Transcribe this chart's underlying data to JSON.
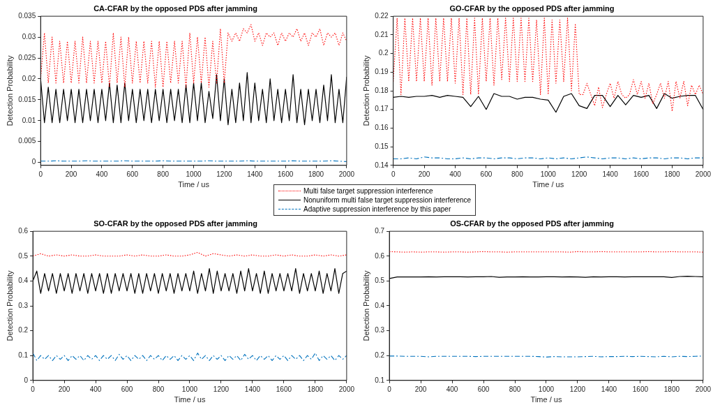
{
  "chart_data": [
    {
      "type": "line",
      "title": "CA-CFAR by the opposed PDS after jamming",
      "xlabel": "Time / us",
      "ylabel": "Detection Probability",
      "legend": "bottom right",
      "x": [
        0,
        25,
        50,
        75,
        100,
        125,
        150,
        175,
        200,
        225,
        250,
        275,
        300,
        325,
        350,
        375,
        400,
        425,
        450,
        475,
        500,
        525,
        550,
        575,
        600,
        625,
        650,
        675,
        700,
        725,
        750,
        775,
        800,
        825,
        850,
        875,
        900,
        925,
        950,
        975,
        1000,
        1025,
        1050,
        1075,
        1100,
        1125,
        1150,
        1175,
        1200,
        1225,
        1250,
        1275,
        1300,
        1325,
        1350,
        1375,
        1400,
        1425,
        1450,
        1475,
        1500,
        1525,
        1550,
        1575,
        1600,
        1625,
        1650,
        1675,
        1700,
        1725,
        1750,
        1775,
        1800,
        1825,
        1850,
        1875,
        1900,
        1925,
        1950,
        1975,
        2000
      ],
      "xlim": [
        0,
        2000
      ],
      "xticks": [
        0,
        200,
        400,
        600,
        800,
        1000,
        1200,
        1400,
        1600,
        1800,
        2000
      ],
      "ylim": [
        -0.0007,
        0.035
      ],
      "yticks": [
        0,
        0.005,
        0.01,
        0.015,
        0.02,
        0.025,
        0.03,
        0.035
      ],
      "series": [
        {
          "name": "Multi false target suppression interference",
          "color": "#ff0000",
          "line_style": "dotted",
          "values": [
            0.02,
            0.031,
            0.019,
            0.03,
            0.019,
            0.029,
            0.019,
            0.029,
            0.019,
            0.029,
            0.019,
            0.03,
            0.019,
            0.029,
            0.019,
            0.029,
            0.019,
            0.029,
            0.018,
            0.031,
            0.019,
            0.03,
            0.018,
            0.03,
            0.019,
            0.029,
            0.019,
            0.029,
            0.019,
            0.029,
            0.018,
            0.029,
            0.018,
            0.029,
            0.019,
            0.029,
            0.019,
            0.029,
            0.018,
            0.031,
            0.019,
            0.03,
            0.019,
            0.03,
            0.018,
            0.029,
            0.019,
            0.032,
            0.019,
            0.031,
            0.029,
            0.031,
            0.029,
            0.032,
            0.031,
            0.033,
            0.029,
            0.031,
            0.028,
            0.031,
            0.03,
            0.031,
            0.028,
            0.031,
            0.029,
            0.031,
            0.03,
            0.032,
            0.029,
            0.031,
            0.028,
            0.031,
            0.03,
            0.032,
            0.028,
            0.031,
            0.03,
            0.031,
            0.028,
            0.031,
            0.029
          ]
        },
        {
          "name": "Nonuniform multi false target suppression interference",
          "color": "#000000",
          "line_style": "solid",
          "values": [
            0.02,
            0.0095,
            0.018,
            0.0095,
            0.0175,
            0.0095,
            0.0175,
            0.01,
            0.0175,
            0.0095,
            0.0175,
            0.0095,
            0.0175,
            0.01,
            0.0175,
            0.0095,
            0.0175,
            0.01,
            0.019,
            0.0095,
            0.0185,
            0.0095,
            0.019,
            0.01,
            0.0175,
            0.0095,
            0.0175,
            0.01,
            0.0175,
            0.0095,
            0.0175,
            0.01,
            0.0175,
            0.0095,
            0.0175,
            0.01,
            0.0175,
            0.0095,
            0.0185,
            0.0095,
            0.019,
            0.01,
            0.019,
            0.0095,
            0.017,
            0.0105,
            0.021,
            0.01,
            0.02,
            0.009,
            0.0175,
            0.0095,
            0.019,
            0.01,
            0.0215,
            0.0095,
            0.019,
            0.01,
            0.0175,
            0.0095,
            0.02,
            0.01,
            0.0175,
            0.0095,
            0.0175,
            0.01,
            0.021,
            0.0095,
            0.0175,
            0.009,
            0.0175,
            0.01,
            0.0175,
            0.0095,
            0.0185,
            0.01,
            0.021,
            0.0095,
            0.0175,
            0.0095,
            0.0205
          ]
        },
        {
          "name": "Adaptive suppression interference by this paper",
          "color": "#0072bd",
          "line_style": "dashed",
          "x": [
            0,
            50,
            100,
            150,
            200,
            250,
            300,
            350,
            400,
            450,
            500,
            550,
            600,
            650,
            700,
            750,
            800,
            850,
            900,
            950,
            1000,
            1050,
            1100,
            1150,
            1200,
            1250,
            1300,
            1350,
            1400,
            1450,
            1500,
            1550,
            1600,
            1650,
            1700,
            1750,
            1800,
            1850,
            1900,
            1950,
            2000
          ],
          "values": [
            0.0003,
            0.0003,
            0.0004,
            0.0003,
            0.0003,
            0.0003,
            0.0004,
            0.0003,
            0.0003,
            0.0003,
            0.0003,
            0.0004,
            0.0003,
            0.0003,
            0.0003,
            0.0003,
            0.0004,
            0.0003,
            0.0003,
            0.0003,
            0.0003,
            0.0003,
            0.0004,
            0.0003,
            0.0003,
            0.0003,
            0.0003,
            0.0004,
            0.0003,
            0.0003,
            0.0003,
            0.0003,
            0.0003,
            0.0004,
            0.0003,
            0.0003,
            0.0003,
            0.0003,
            0.0004,
            0.0003,
            0.0002
          ]
        }
      ]
    },
    {
      "type": "line",
      "title": "GO-CFAR by the opposed PDS after jamming",
      "xlabel": "Time / us",
      "ylabel": "Detection Probability",
      "x": [
        0,
        25,
        50,
        75,
        100,
        125,
        150,
        175,
        200,
        225,
        250,
        275,
        300,
        325,
        350,
        375,
        400,
        425,
        450,
        475,
        500,
        525,
        550,
        575,
        600,
        625,
        650,
        675,
        700,
        725,
        750,
        775,
        800,
        825,
        850,
        875,
        900,
        925,
        950,
        975,
        1000,
        1025,
        1050,
        1075,
        1100,
        1125,
        1150,
        1175,
        1200,
        1225,
        1250,
        1275,
        1300,
        1325,
        1350,
        1375,
        1400,
        1425,
        1450,
        1475,
        1500,
        1525,
        1550,
        1575,
        1600,
        1625,
        1650,
        1675,
        1700,
        1725,
        1750,
        1775,
        1800,
        1825,
        1850,
        1875,
        1900,
        1925,
        1950,
        1975,
        2000
      ],
      "xlim": [
        0,
        2000
      ],
      "xticks": [
        0,
        200,
        400,
        600,
        800,
        1000,
        1200,
        1400,
        1600,
        1800,
        2000
      ],
      "ylim": [
        0.14,
        0.22
      ],
      "yticks": [
        0.14,
        0.15,
        0.16,
        0.17,
        0.18,
        0.19,
        0.2,
        0.21,
        0.22
      ],
      "series": [
        {
          "color": "#ff0000",
          "line_style": "dotted",
          "values": [
            0.185,
            0.219,
            0.178,
            0.219,
            0.185,
            0.219,
            0.185,
            0.219,
            0.185,
            0.219,
            0.183,
            0.219,
            0.185,
            0.219,
            0.185,
            0.219,
            0.184,
            0.219,
            0.178,
            0.219,
            0.178,
            0.219,
            0.178,
            0.219,
            0.185,
            0.219,
            0.183,
            0.219,
            0.186,
            0.219,
            0.185,
            0.219,
            0.185,
            0.219,
            0.185,
            0.219,
            0.185,
            0.218,
            0.178,
            0.219,
            0.178,
            0.218,
            0.184,
            0.218,
            0.185,
            0.219,
            0.18,
            0.216,
            0.178,
            0.178,
            0.184,
            0.178,
            0.172,
            0.182,
            0.171,
            0.178,
            0.184,
            0.176,
            0.185,
            0.178,
            0.176,
            0.178,
            0.186,
            0.178,
            0.185,
            0.176,
            0.184,
            0.173,
            0.178,
            0.184,
            0.176,
            0.185,
            0.169,
            0.185,
            0.176,
            0.185,
            0.172,
            0.183,
            0.178,
            0.183,
            0.178
          ]
        },
        {
          "color": "#000000",
          "line_style": "solid",
          "x": [
            0,
            50,
            100,
            150,
            200,
            250,
            300,
            350,
            400,
            450,
            500,
            550,
            600,
            650,
            700,
            750,
            800,
            850,
            900,
            950,
            1000,
            1050,
            1100,
            1150,
            1200,
            1250,
            1300,
            1350,
            1400,
            1450,
            1500,
            1550,
            1600,
            1650,
            1700,
            1750,
            1800,
            1850,
            1900,
            1950,
            2000
          ],
          "values": [
            0.1765,
            0.177,
            0.1765,
            0.177,
            0.177,
            0.1775,
            0.1765,
            0.1775,
            0.177,
            0.1765,
            0.1715,
            0.177,
            0.17,
            0.1785,
            0.177,
            0.177,
            0.1755,
            0.1765,
            0.1765,
            0.1755,
            0.175,
            0.1685,
            0.177,
            0.1785,
            0.172,
            0.1705,
            0.1775,
            0.1775,
            0.1715,
            0.1775,
            0.1725,
            0.1775,
            0.1765,
            0.1775,
            0.1705,
            0.1785,
            0.176,
            0.177,
            0.1775,
            0.1775,
            0.17
          ]
        },
        {
          "color": "#0072bd",
          "line_style": "dashed",
          "x": [
            0,
            50,
            100,
            150,
            200,
            250,
            300,
            350,
            400,
            450,
            500,
            550,
            600,
            650,
            700,
            750,
            800,
            850,
            900,
            950,
            1000,
            1050,
            1100,
            1150,
            1200,
            1250,
            1300,
            1350,
            1400,
            1450,
            1500,
            1550,
            1600,
            1650,
            1700,
            1750,
            1800,
            1850,
            1900,
            1950,
            2000
          ],
          "values": [
            0.1435,
            0.1435,
            0.144,
            0.1435,
            0.1445,
            0.144,
            0.144,
            0.1435,
            0.1435,
            0.144,
            0.1435,
            0.144,
            0.144,
            0.1435,
            0.144,
            0.144,
            0.1435,
            0.144,
            0.144,
            0.1435,
            0.144,
            0.1435,
            0.144,
            0.1435,
            0.144,
            0.1445,
            0.144,
            0.1435,
            0.144,
            0.144,
            0.1435,
            0.144,
            0.1435,
            0.144,
            0.144,
            0.1435,
            0.144,
            0.144,
            0.1435,
            0.144,
            0.144
          ]
        }
      ]
    },
    {
      "type": "line",
      "title": "SO-CFAR by the opposed PDS after jamming",
      "xlabel": "Time / us",
      "ylabel": "Detection Probability",
      "x": [
        0,
        25,
        50,
        75,
        100,
        125,
        150,
        175,
        200,
        225,
        250,
        275,
        300,
        325,
        350,
        375,
        400,
        425,
        450,
        475,
        500,
        525,
        550,
        575,
        600,
        625,
        650,
        675,
        700,
        725,
        750,
        775,
        800,
        825,
        850,
        875,
        900,
        925,
        950,
        975,
        1000,
        1025,
        1050,
        1075,
        1100,
        1125,
        1150,
        1175,
        1200,
        1225,
        1250,
        1275,
        1300,
        1325,
        1350,
        1375,
        1400,
        1425,
        1450,
        1475,
        1500,
        1525,
        1550,
        1575,
        1600,
        1625,
        1650,
        1675,
        1700,
        1725,
        1750,
        1775,
        1800,
        1825,
        1850,
        1875,
        1900,
        1925,
        1950,
        1975,
        2000
      ],
      "xlim": [
        0,
        2000
      ],
      "xticks": [
        0,
        200,
        400,
        600,
        800,
        1000,
        1200,
        1400,
        1600,
        1800,
        2000
      ],
      "ylim": [
        0,
        0.6
      ],
      "yticks": [
        0,
        0.1,
        0.2,
        0.3,
        0.4,
        0.5,
        0.6
      ],
      "series": [
        {
          "color": "#ff0000",
          "line_style": "dotted",
          "x": [
            0,
            50,
            100,
            150,
            200,
            250,
            300,
            350,
            400,
            450,
            500,
            550,
            600,
            650,
            700,
            750,
            800,
            850,
            900,
            950,
            1000,
            1050,
            1100,
            1150,
            1200,
            1250,
            1300,
            1350,
            1400,
            1450,
            1500,
            1550,
            1600,
            1650,
            1700,
            1750,
            1800,
            1850,
            1900,
            1950,
            2000
          ],
          "values": [
            0.5,
            0.51,
            0.5,
            0.505,
            0.5,
            0.505,
            0.5,
            0.5,
            0.505,
            0.5,
            0.5,
            0.5,
            0.505,
            0.5,
            0.505,
            0.5,
            0.5,
            0.505,
            0.5,
            0.5,
            0.505,
            0.515,
            0.5,
            0.51,
            0.505,
            0.5,
            0.505,
            0.5,
            0.505,
            0.5,
            0.5,
            0.505,
            0.5,
            0.505,
            0.5,
            0.5,
            0.505,
            0.5,
            0.505,
            0.5,
            0.505
          ]
        },
        {
          "color": "#000000",
          "line_style": "solid",
          "values": [
            0.4,
            0.44,
            0.35,
            0.43,
            0.36,
            0.43,
            0.35,
            0.43,
            0.36,
            0.43,
            0.35,
            0.43,
            0.36,
            0.43,
            0.35,
            0.43,
            0.36,
            0.43,
            0.35,
            0.43,
            0.35,
            0.43,
            0.36,
            0.43,
            0.36,
            0.43,
            0.35,
            0.43,
            0.35,
            0.43,
            0.36,
            0.43,
            0.35,
            0.43,
            0.36,
            0.43,
            0.35,
            0.43,
            0.36,
            0.43,
            0.36,
            0.44,
            0.35,
            0.43,
            0.36,
            0.45,
            0.35,
            0.44,
            0.36,
            0.43,
            0.36,
            0.43,
            0.35,
            0.44,
            0.36,
            0.45,
            0.36,
            0.43,
            0.35,
            0.44,
            0.35,
            0.43,
            0.36,
            0.43,
            0.36,
            0.43,
            0.36,
            0.45,
            0.35,
            0.43,
            0.36,
            0.43,
            0.36,
            0.44,
            0.35,
            0.43,
            0.36,
            0.45,
            0.35,
            0.43,
            0.44
          ]
        },
        {
          "color": "#0072bd",
          "line_style": "dashed",
          "values": [
            0.11,
            0.08,
            0.1,
            0.085,
            0.1,
            0.08,
            0.1,
            0.085,
            0.1,
            0.08,
            0.1,
            0.085,
            0.1,
            0.08,
            0.1,
            0.085,
            0.1,
            0.08,
            0.1,
            0.085,
            0.1,
            0.08,
            0.105,
            0.085,
            0.1,
            0.08,
            0.1,
            0.085,
            0.1,
            0.08,
            0.1,
            0.085,
            0.1,
            0.08,
            0.1,
            0.085,
            0.1,
            0.08,
            0.1,
            0.085,
            0.1,
            0.08,
            0.11,
            0.085,
            0.1,
            0.08,
            0.1,
            0.085,
            0.1,
            0.08,
            0.1,
            0.085,
            0.1,
            0.08,
            0.105,
            0.085,
            0.1,
            0.08,
            0.1,
            0.085,
            0.1,
            0.08,
            0.1,
            0.085,
            0.1,
            0.08,
            0.1,
            0.085,
            0.1,
            0.08,
            0.1,
            0.085,
            0.11,
            0.08,
            0.1,
            0.085,
            0.1,
            0.08,
            0.1,
            0.085,
            0.1
          ]
        }
      ]
    },
    {
      "type": "line",
      "title": "OS-CFAR by the opposed PDS after jamming",
      "xlabel": "Time / us",
      "ylabel": "Detection Probability",
      "x": [
        0,
        50,
        100,
        150,
        200,
        250,
        300,
        350,
        400,
        450,
        500,
        550,
        600,
        650,
        700,
        750,
        800,
        850,
        900,
        950,
        1000,
        1050,
        1100,
        1150,
        1200,
        1250,
        1300,
        1350,
        1400,
        1450,
        1500,
        1550,
        1600,
        1650,
        1700,
        1750,
        1800,
        1850,
        1900,
        1950,
        2000
      ],
      "xlim": [
        0,
        2000
      ],
      "xticks": [
        0,
        200,
        400,
        600,
        800,
        1000,
        1200,
        1400,
        1600,
        1800,
        2000
      ],
      "ylim": [
        0.1,
        0.7
      ],
      "yticks": [
        0.1,
        0.2,
        0.3,
        0.4,
        0.5,
        0.6,
        0.7
      ],
      "series": [
        {
          "color": "#ff0000",
          "line_style": "dotted",
          "values": [
            0.618,
            0.617,
            0.616,
            0.617,
            0.616,
            0.617,
            0.617,
            0.616,
            0.617,
            0.617,
            0.616,
            0.617,
            0.618,
            0.617,
            0.617,
            0.616,
            0.617,
            0.617,
            0.617,
            0.617,
            0.617,
            0.617,
            0.617,
            0.616,
            0.618,
            0.617,
            0.617,
            0.618,
            0.617,
            0.617,
            0.617,
            0.617,
            0.617,
            0.618,
            0.617,
            0.617,
            0.618,
            0.617,
            0.617,
            0.617,
            0.616
          ]
        },
        {
          "color": "#000000",
          "line_style": "solid",
          "values": [
            0.51,
            0.516,
            0.516,
            0.516,
            0.516,
            0.517,
            0.516,
            0.517,
            0.517,
            0.517,
            0.516,
            0.517,
            0.517,
            0.518,
            0.515,
            0.516,
            0.516,
            0.517,
            0.516,
            0.516,
            0.517,
            0.517,
            0.516,
            0.517,
            0.516,
            0.515,
            0.517,
            0.516,
            0.517,
            0.517,
            0.516,
            0.517,
            0.517,
            0.517,
            0.517,
            0.517,
            0.514,
            0.518,
            0.519,
            0.518,
            0.517
          ]
        },
        {
          "color": "#0072bd",
          "line_style": "dashed",
          "values": [
            0.198,
            0.198,
            0.197,
            0.197,
            0.197,
            0.195,
            0.197,
            0.197,
            0.197,
            0.197,
            0.197,
            0.196,
            0.197,
            0.197,
            0.197,
            0.197,
            0.197,
            0.197,
            0.197,
            0.196,
            0.194,
            0.196,
            0.195,
            0.195,
            0.195,
            0.196,
            0.197,
            0.195,
            0.196,
            0.196,
            0.197,
            0.196,
            0.197,
            0.196,
            0.195,
            0.197,
            0.195,
            0.197,
            0.196,
            0.197,
            0.198
          ]
        }
      ]
    }
  ]
}
